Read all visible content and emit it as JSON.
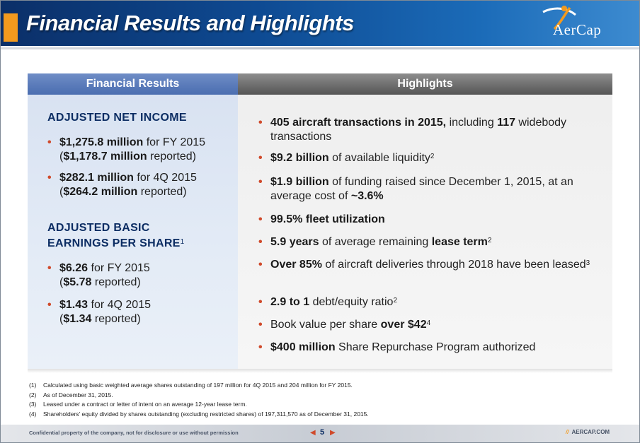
{
  "header": {
    "title": "Financial Results and Highlights",
    "logo_text": "AerCap",
    "colors": {
      "accent": "#f39a1e",
      "header_blue": "#0e4a92"
    }
  },
  "left": {
    "heading": "Financial Results",
    "sections": [
      {
        "title": "ADJUSTED NET INCOME",
        "items": [
          {
            "bold": "$1,275.8 million",
            "text": " for FY 2015",
            "line2_open": "(",
            "line2_bold": "$1,178.7 million",
            "line2_text": " reported)"
          },
          {
            "bold": "$282.1 million",
            "text": " for 4Q 2015",
            "line2_open": "(",
            "line2_bold": "$264.2 million",
            "line2_text": " reported)"
          }
        ]
      },
      {
        "title_line1": "ADJUSTED BASIC",
        "title_line2": "EARNINGS PER SHARE",
        "title_sup": "1",
        "items": [
          {
            "bold": "$6.26",
            "text": " for FY 2015",
            "line2_open": "(",
            "line2_bold": "$5.78",
            "line2_text": " reported)"
          },
          {
            "bold": "$1.43",
            "text": " for 4Q 2015",
            "line2_open": "(",
            "line2_bold": "$1.34",
            "line2_text": " reported)"
          }
        ]
      }
    ]
  },
  "right": {
    "heading": "Highlights",
    "items": [
      {
        "p1b": "405 aircraft transactions in 2015,",
        "p2": " including ",
        "p3b": "117",
        "p4": " widebody transactions"
      },
      {
        "p1b": "$9.2 billion",
        "p2": " of available liquidity",
        "sup": "2"
      },
      {
        "p1b": "$1.9 billion",
        "p2": " of funding raised since December 1, 2015, at an average cost of ",
        "p3b": "~3.6%"
      },
      {
        "p1b": "99.5% fleet utilization"
      },
      {
        "p1b": "5.9 years",
        "p2": " of average remaining ",
        "p3b": "lease term",
        "sup": "2"
      },
      {
        "p1b": "Over 85%",
        "p2": " of aircraft deliveries through 2018 have been leased",
        "sup": "3"
      },
      {
        "p1b": "2.9 to 1",
        "p2": " debt/equity ratio",
        "sup": "2"
      },
      {
        "p2": "Book value per share ",
        "p3b": "over $42",
        "sup": "4"
      },
      {
        "p1b": "$400 million",
        "p2": " Share Repurchase Program authorized"
      }
    ]
  },
  "footnotes": [
    {
      "num": "(1)",
      "text": "Calculated using basic weighted average shares outstanding of 197 million for 4Q 2015 and 204 million for FY 2015."
    },
    {
      "num": "(2)",
      "text": "As of December 31, 2015."
    },
    {
      "num": "(3)",
      "text": "Leased under a contract or letter of intent on an average 12-year lease term."
    },
    {
      "num": "(4)",
      "text": "Shareholders’ equity divided by shares outstanding (excluding restricted shares) of 197,311,570 as of December 31, 2015."
    }
  ],
  "footer": {
    "confidential": "Confidential property of the company, not for disclosure or use without permission",
    "page": "5",
    "site_slash": "//",
    "site": "AERCAP.COM"
  }
}
